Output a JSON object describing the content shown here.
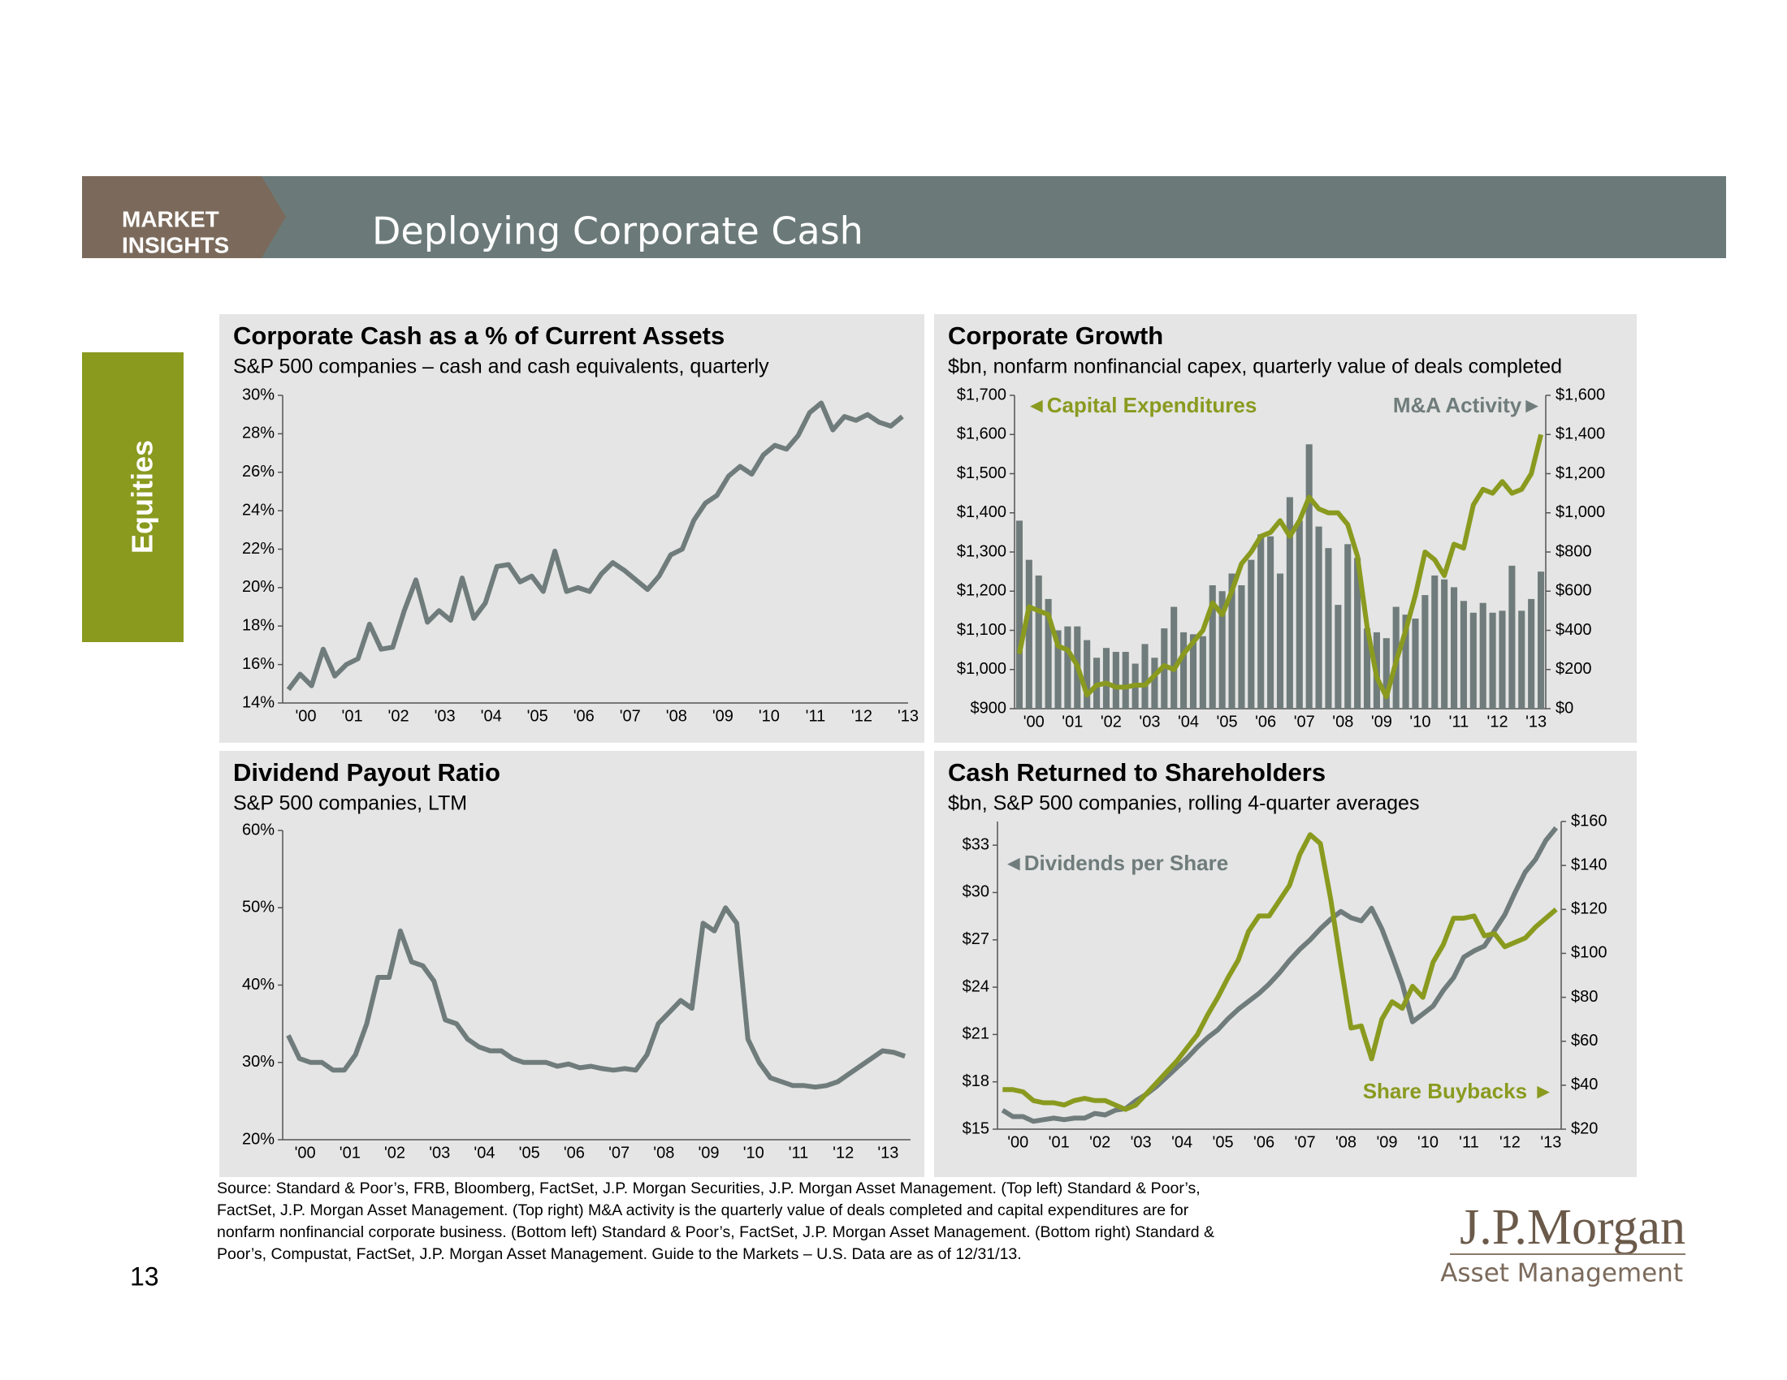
{
  "header": {
    "brand": [
      "MARKET",
      "INSIGHTS"
    ],
    "title": "Deploying Corporate Cash"
  },
  "section_tab": "Equities",
  "page_number": "13",
  "source": [
    "Source: Standard & Poor’s, FRB, Bloomberg, FactSet, J.P. Morgan Securities, J.P. Morgan Asset Management.  (Top left) Standard & Poor’s,",
    "FactSet, J.P. Morgan Asset Management. (Top right) M&A activity is the quarterly value of deals completed and capital expenditures are for",
    "nonfarm nonfinancial corporate business. (Bottom left) Standard & Poor’s, FactSet, J.P. Morgan Asset Management. (Bottom right) Standard &",
    "Poor’s, Compustat, FactSet, J.P. Morgan Asset Management. Guide to the Markets – U.S. Data are as of 12/31/13."
  ],
  "logo": {
    "name": "J.P.Morgan",
    "tagline": "Asset Management"
  },
  "chart_data": [
    {
      "type": "line",
      "title": "Corporate Cash as a % of Current Assets",
      "subtitle": "S&P 500 companies – cash and cash equivalents, quarterly",
      "categories": [
        "'00",
        null,
        null,
        null,
        "'01",
        null,
        null,
        null,
        "'02",
        null,
        null,
        null,
        "'03",
        null,
        null,
        null,
        "'04",
        null,
        null,
        null,
        "'05",
        null,
        null,
        null,
        "'06",
        null,
        null,
        null,
        "'07",
        null,
        null,
        null,
        "'08",
        null,
        null,
        null,
        "'09",
        null,
        null,
        null,
        "'10",
        null,
        null,
        null,
        "'11",
        null,
        null,
        null,
        "'12",
        null,
        null,
        null,
        "'13",
        null
      ],
      "series": [
        {
          "color": "#6f7c7b",
          "values": [
            14.7,
            15.5,
            14.9,
            16.8,
            15.4,
            16.0,
            16.3,
            18.1,
            16.8,
            16.9,
            18.8,
            20.4,
            18.2,
            18.8,
            18.3,
            20.5,
            18.4,
            19.2,
            21.1,
            21.2,
            20.3,
            20.6,
            19.8,
            21.9,
            19.8,
            20.0,
            19.8,
            20.7,
            21.3,
            20.9,
            20.4,
            19.9,
            20.6,
            21.7,
            22.0,
            23.5,
            24.4,
            24.8,
            25.8,
            26.3,
            25.9,
            26.9,
            27.4,
            27.2,
            27.9,
            29.1,
            29.6,
            28.2,
            28.9,
            28.7,
            29.0,
            28.6,
            28.4,
            28.9
          ]
        }
      ],
      "ylim": [
        14,
        30
      ],
      "yticks": [
        {
          "value": 14,
          "label": "14%"
        },
        {
          "value": 16,
          "label": "16%"
        },
        {
          "value": 18,
          "label": "18%"
        },
        {
          "value": 20,
          "label": "20%"
        },
        {
          "value": 22,
          "label": "22%"
        },
        {
          "value": 24,
          "label": "24%"
        },
        {
          "value": 26,
          "label": "26%"
        },
        {
          "value": 28,
          "label": "28%"
        },
        {
          "value": 30,
          "label": "30%"
        }
      ],
      "grid": false
    },
    {
      "type": "combo",
      "title": "Corporate Growth",
      "subtitle": "$bn, nonfarm nonfinancial capex, quarterly value of deals completed",
      "annotations": [
        "◄Capital Expenditures",
        "M&A Activity►"
      ],
      "categories": [
        "'00",
        null,
        null,
        null,
        "'01",
        null,
        null,
        null,
        "'02",
        null,
        null,
        null,
        "'03",
        null,
        null,
        null,
        "'04",
        null,
        null,
        null,
        "'05",
        null,
        null,
        null,
        "'06",
        null,
        null,
        null,
        "'07",
        null,
        null,
        null,
        "'08",
        null,
        null,
        null,
        "'09",
        null,
        null,
        null,
        "'10",
        null,
        null,
        null,
        "'11",
        null,
        null,
        null,
        "'12",
        null,
        null,
        null,
        "'13",
        null,
        null
      ],
      "series": [
        {
          "type": "bar",
          "axis": "y2",
          "color": "#6f7c7b",
          "values": [
            960,
            760,
            680,
            560,
            400,
            420,
            420,
            350,
            260,
            310,
            290,
            290,
            230,
            330,
            260,
            410,
            520,
            390,
            380,
            370,
            630,
            600,
            690,
            630,
            760,
            890,
            880,
            690,
            1080,
            960,
            1350,
            930,
            820,
            530,
            840,
            770,
            410,
            390,
            360,
            520,
            480,
            460,
            580,
            680,
            660,
            620,
            550,
            490,
            540,
            490,
            500,
            730,
            500,
            560,
            700
          ]
        },
        {
          "type": "line",
          "color": "#8a9a1f",
          "values": [
            1040,
            1160,
            1150,
            1140,
            1060,
            1050,
            1010,
            935,
            960,
            965,
            955,
            955,
            960,
            960,
            985,
            1010,
            1000,
            1040,
            1070,
            1100,
            1170,
            1140,
            1200,
            1270,
            1300,
            1340,
            1350,
            1380,
            1340,
            1380,
            1440,
            1410,
            1400,
            1400,
            1370,
            1290,
            1110,
            980,
            930,
            1020,
            1100,
            1190,
            1300,
            1280,
            1240,
            1320,
            1310,
            1420,
            1460,
            1450,
            1480,
            1450,
            1460,
            1500,
            1600
          ]
        }
      ],
      "ylim": [
        900,
        1700
      ],
      "yticks": [
        {
          "value": 900,
          "label": "$900"
        },
        {
          "value": 1000,
          "label": "$1,000"
        },
        {
          "value": 1100,
          "label": "$1,100"
        },
        {
          "value": 1200,
          "label": "$1,200"
        },
        {
          "value": 1300,
          "label": "$1,300"
        },
        {
          "value": 1400,
          "label": "$1,400"
        },
        {
          "value": 1500,
          "label": "$1,500"
        },
        {
          "value": 1600,
          "label": "$1,600"
        },
        {
          "value": 1700,
          "label": "$1,700"
        }
      ],
      "y2lim": [
        0,
        1600
      ],
      "y2ticks": [
        {
          "value": 0,
          "label": "$0"
        },
        {
          "value": 200,
          "label": "$200"
        },
        {
          "value": 400,
          "label": "$400"
        },
        {
          "value": 600,
          "label": "$600"
        },
        {
          "value": 800,
          "label": "$800"
        },
        {
          "value": 1000,
          "label": "$1,000"
        },
        {
          "value": 1200,
          "label": "$1,200"
        },
        {
          "value": 1400,
          "label": "$1,400"
        },
        {
          "value": 1600,
          "label": "$1,600"
        }
      ],
      "grid": false
    },
    {
      "type": "line",
      "title": "Dividend Payout Ratio",
      "subtitle": "S&P 500 companies, LTM",
      "categories": [
        "'00",
        null,
        null,
        null,
        "'01",
        null,
        null,
        null,
        "'02",
        null,
        null,
        null,
        "'03",
        null,
        null,
        null,
        "'04",
        null,
        null,
        null,
        "'05",
        null,
        null,
        null,
        "'06",
        null,
        null,
        null,
        "'07",
        null,
        null,
        null,
        "'08",
        null,
        null,
        null,
        "'09",
        null,
        null,
        null,
        "'10",
        null,
        null,
        null,
        "'11",
        null,
        null,
        null,
        "'12",
        null,
        null,
        null,
        "'13",
        null,
        null,
        null
      ],
      "series": [
        {
          "color": "#6f7c7b",
          "values": [
            33.5,
            30.5,
            30.0,
            30.0,
            29.0,
            29.0,
            31.0,
            35.0,
            41.0,
            41.0,
            47.0,
            43.0,
            42.5,
            40.5,
            35.5,
            35.0,
            33.0,
            32.0,
            31.5,
            31.5,
            30.5,
            30.0,
            30.0,
            30.0,
            29.5,
            29.8,
            29.3,
            29.5,
            29.2,
            29.0,
            29.2,
            29.0,
            31.0,
            35.0,
            36.5,
            38.0,
            37.0,
            48.0,
            47.0,
            50.0,
            48.0,
            33.0,
            30.0,
            28.0,
            27.5,
            27.0,
            27.0,
            26.8,
            27.0,
            27.5,
            28.5,
            29.5,
            30.5,
            31.5,
            31.3,
            30.8
          ]
        }
      ],
      "ylim": [
        20,
        60
      ],
      "yticks": [
        {
          "value": 20,
          "label": "20%"
        },
        {
          "value": 30,
          "label": "30%"
        },
        {
          "value": 40,
          "label": "40%"
        },
        {
          "value": 50,
          "label": "50%"
        },
        {
          "value": 60,
          "label": "60%"
        }
      ],
      "grid": false
    },
    {
      "type": "line",
      "title": "Cash Returned to Shareholders",
      "subtitle": "$bn, S&P 500 companies, rolling 4-quarter averages",
      "annotations": [
        "◄Dividends per Share",
        "Share Buybacks ►"
      ],
      "categories": [
        "'00",
        null,
        null,
        null,
        "'01",
        null,
        null,
        null,
        "'02",
        null,
        null,
        null,
        "'03",
        null,
        null,
        null,
        "'04",
        null,
        null,
        null,
        "'05",
        null,
        null,
        null,
        "'06",
        null,
        null,
        null,
        "'07",
        null,
        null,
        null,
        "'08",
        null,
        null,
        null,
        "'09",
        null,
        null,
        null,
        "'10",
        null,
        null,
        null,
        "'11",
        null,
        null,
        null,
        "'12",
        null,
        null,
        null,
        "'13",
        null,
        null
      ],
      "series": [
        {
          "color": "#6f7c7b",
          "values": [
            16.2,
            15.8,
            15.8,
            15.5,
            15.6,
            15.7,
            15.6,
            15.7,
            15.7,
            16.0,
            15.9,
            16.2,
            16.3,
            16.8,
            17.2,
            17.7,
            18.3,
            18.9,
            19.5,
            20.2,
            20.8,
            21.3,
            22.0,
            22.6,
            23.1,
            23.6,
            24.2,
            24.9,
            25.7,
            26.4,
            27.0,
            27.7,
            28.3,
            28.8,
            28.4,
            28.2,
            29.0,
            27.7,
            26.0,
            24.2,
            21.8,
            22.3,
            22.8,
            23.8,
            24.6,
            25.9,
            26.3,
            26.6,
            27.6,
            28.6,
            30.0,
            31.3,
            32.1,
            33.3,
            34.1
          ]
        },
        {
          "axis": "y2",
          "color": "#8a9a1f",
          "values": [
            38,
            38,
            37,
            33,
            32,
            32,
            31,
            33,
            34,
            33,
            33,
            31,
            29,
            31,
            36,
            41,
            46,
            51,
            57,
            63,
            72,
            80,
            89,
            97,
            110,
            117,
            117,
            124,
            131,
            145,
            154,
            150,
            125,
            95,
            66,
            67,
            52,
            70,
            78,
            75,
            85,
            80,
            96,
            104,
            116,
            116,
            117,
            108,
            109,
            103,
            105,
            107,
            112,
            116,
            120
          ]
        }
      ],
      "ylim": [
        15,
        34.5
      ],
      "yticks": [
        {
          "value": 15,
          "label": "$15"
        },
        {
          "value": 18,
          "label": "$18"
        },
        {
          "value": 21,
          "label": "$21"
        },
        {
          "value": 24,
          "label": "$24"
        },
        {
          "value": 27,
          "label": "$27"
        },
        {
          "value": 30,
          "label": "$30"
        },
        {
          "value": 33,
          "label": "$33"
        }
      ],
      "y2lim": [
        20,
        160
      ],
      "y2ticks": [
        {
          "value": 20,
          "label": "$20"
        },
        {
          "value": 40,
          "label": "$40"
        },
        {
          "value": 60,
          "label": "$60"
        },
        {
          "value": 80,
          "label": "$80"
        },
        {
          "value": 100,
          "label": "$100"
        },
        {
          "value": 120,
          "label": "$120"
        },
        {
          "value": 140,
          "label": "$140"
        },
        {
          "value": 160,
          "label": "$160"
        }
      ],
      "grid": false
    }
  ]
}
